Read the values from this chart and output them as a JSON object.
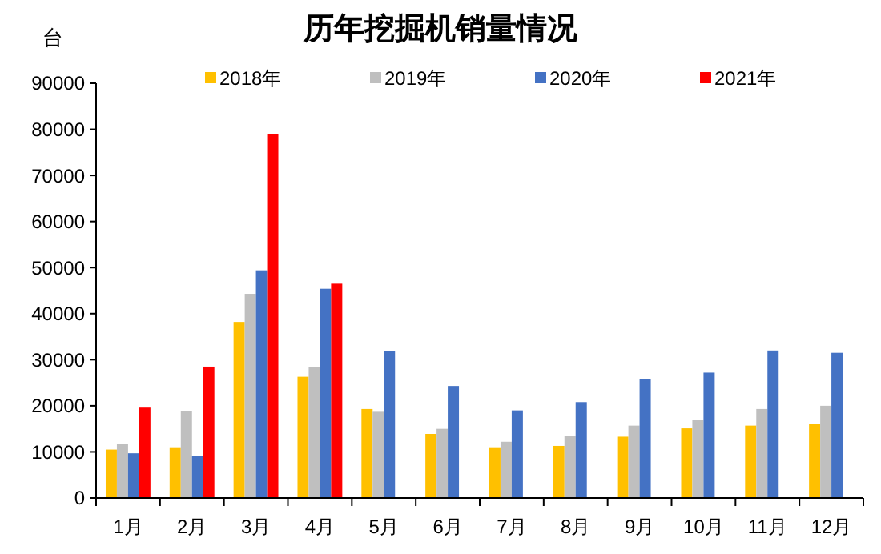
{
  "chart_data": {
    "type": "bar",
    "title": "历年挖掘机销量情况",
    "ylabel": "台",
    "categories": [
      "1月",
      "2月",
      "3月",
      "4月",
      "5月",
      "6月",
      "7月",
      "8月",
      "9月",
      "10月",
      "11月",
      "12月"
    ],
    "series": [
      {
        "name": "2018年",
        "color": "#ffc000",
        "values": [
          10500,
          11000,
          38200,
          26300,
          19300,
          13900,
          11000,
          11300,
          13300,
          15100,
          15700,
          16000
        ]
      },
      {
        "name": "2019年",
        "color": "#bfbfbf",
        "values": [
          11800,
          18800,
          44300,
          28400,
          18700,
          15000,
          12200,
          13500,
          15700,
          17000,
          19300,
          20000
        ]
      },
      {
        "name": "2020年",
        "color": "#4472c4",
        "values": [
          9700,
          9200,
          49400,
          45400,
          31800,
          24300,
          19000,
          20800,
          25800,
          27200,
          32000,
          31500
        ]
      },
      {
        "name": "2021年",
        "color": "#ff0000",
        "values": [
          19600,
          28500,
          79000,
          46500,
          null,
          null,
          null,
          null,
          null,
          null,
          null,
          null
        ]
      }
    ],
    "ylim": [
      0,
      90000
    ],
    "yticks": [
      0,
      10000,
      20000,
      30000,
      40000,
      50000,
      60000,
      70000,
      80000,
      90000
    ],
    "grid": false,
    "legend": "top"
  }
}
